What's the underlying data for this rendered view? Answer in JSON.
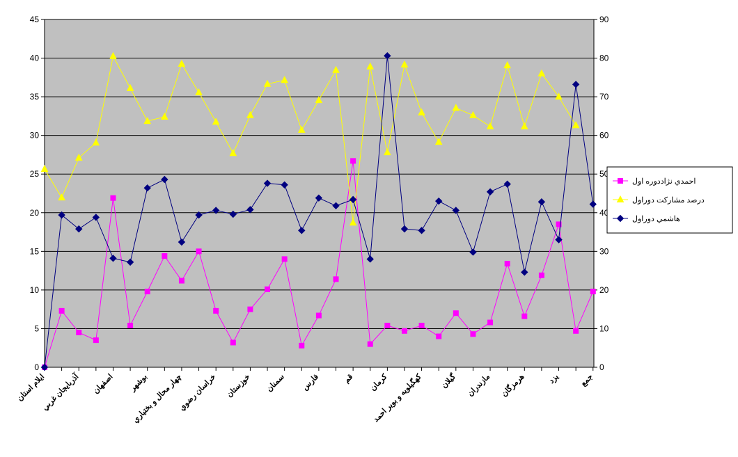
{
  "chart_data": {
    "type": "line",
    "categories": [
      "ايلام استان",
      null,
      "آذربايجان غربي",
      null,
      "اصفهان",
      null,
      "بوشهر",
      null,
      "چهار محال و بختياري",
      null,
      "خراسان رضوي",
      null,
      "خوزستان",
      null,
      "سمنان",
      null,
      "فارس",
      null,
      "قم",
      null,
      "كرمان",
      null,
      "كهگيلويه و بوير احمد",
      null,
      "گيلان",
      null,
      "مازندران",
      null,
      "هرمزگان",
      null,
      "يزد",
      null,
      "جمع"
    ],
    "ylim": [
      0,
      45
    ],
    "yticks": [
      0,
      5,
      10,
      15,
      20,
      25,
      30,
      35,
      40,
      45
    ],
    "y2lim": [
      0,
      90
    ],
    "y2ticks": [
      0,
      10,
      20,
      30,
      40,
      50,
      60,
      70,
      80,
      90
    ],
    "grid": true,
    "legend": "right",
    "series": [
      {
        "name": "احمدي نژاددوره اول",
        "color": "#ff00ff",
        "marker": "square",
        "values": [
          0,
          7.3,
          4.5,
          3.5,
          21.9,
          5.4,
          9.8,
          14.4,
          11.2,
          15.0,
          7.3,
          3.2,
          7.5,
          10.1,
          14.0,
          2.8,
          6.7,
          11.4,
          26.7,
          3.0,
          5.4,
          4.7,
          5.4,
          4.0,
          7.0,
          4.3,
          5.8,
          13.4,
          6.6,
          11.9,
          18.5,
          4.7,
          9.8
        ]
      },
      {
        "name": "درصد مشاركت دوراول",
        "color": "#ffff00",
        "marker": "triangle",
        "axis": "y2",
        "values": [
          51.3,
          43.9,
          54.2,
          58.1,
          80.5,
          72.2,
          63.7,
          64.8,
          78.5,
          71.1,
          63.5,
          55.4,
          65.2,
          73.3,
          74.3,
          61.4,
          69.1,
          76.9,
          37.4,
          77.8,
          55.6,
          78.3,
          65.9,
          58.3,
          67.1,
          65.2,
          62.3,
          78.1,
          62.3,
          76.0,
          70.0,
          62.6,
          null
        ]
      },
      {
        "name": "هاشمي دوراول",
        "color": "#000080",
        "marker": "diamond",
        "values": [
          0,
          19.7,
          17.9,
          19.4,
          14.1,
          13.6,
          23.2,
          24.3,
          16.2,
          19.7,
          20.3,
          19.8,
          20.4,
          23.8,
          23.6,
          17.7,
          21.9,
          20.9,
          21.7,
          14.0,
          40.3,
          17.9,
          17.7,
          21.5,
          20.3,
          14.9,
          22.7,
          23.7,
          12.3,
          21.4,
          16.5,
          36.6,
          21.1
        ]
      }
    ]
  }
}
